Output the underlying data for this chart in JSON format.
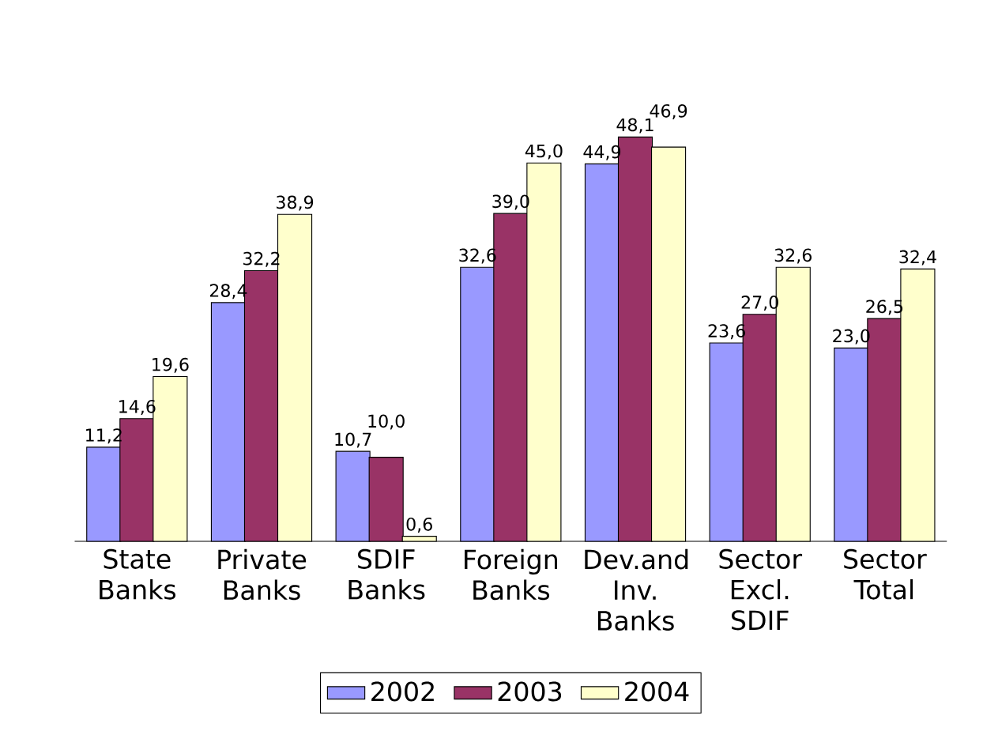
{
  "chart_data": {
    "type": "bar",
    "categories": [
      "State Banks",
      "Private Banks",
      "SDIF Banks",
      "Foreign Banks",
      "Dev.and Inv. Banks",
      "Sector Excl. SDIF",
      "Sector Total"
    ],
    "series": [
      {
        "name": "2002",
        "color": "#9999ff",
        "values": [
          11.2,
          28.4,
          10.7,
          32.6,
          44.9,
          23.6,
          23.0
        ],
        "value_labels": [
          "11,2",
          "28,4",
          "10,7",
          "32,6",
          "44,9",
          "23,6",
          "23,0"
        ]
      },
      {
        "name": "2003",
        "color": "#993366",
        "values": [
          14.6,
          32.2,
          10.0,
          39.0,
          48.1,
          27.0,
          26.5
        ],
        "value_labels": [
          "14,6",
          "32,2",
          "10,0",
          "39,0",
          "48,1",
          "27,0",
          "26,5"
        ]
      },
      {
        "name": "2004",
        "color": "#ffffcc",
        "values": [
          19.6,
          38.9,
          0.6,
          45.0,
          46.9,
          32.6,
          32.4
        ],
        "value_labels": [
          "19,6",
          "38,9",
          "0,6",
          "45,0",
          "46,9",
          "32,6",
          "32,4"
        ]
      }
    ],
    "legend": "bottom"
  }
}
